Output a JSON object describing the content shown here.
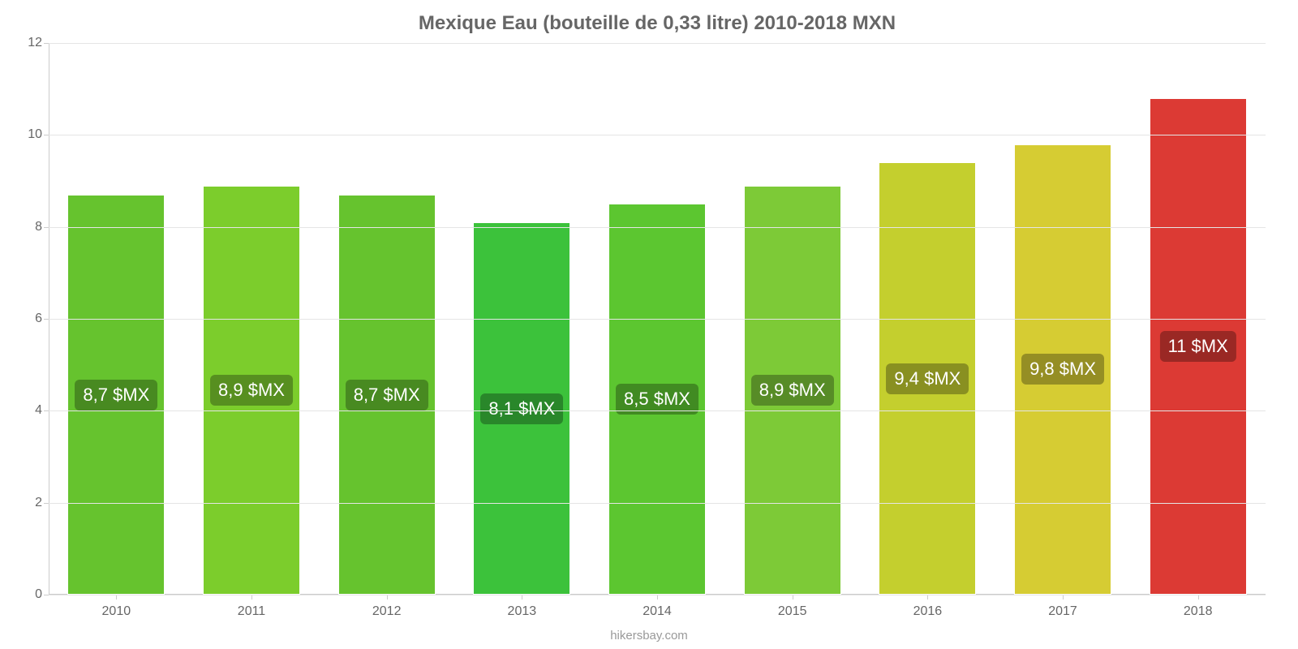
{
  "chart": {
    "type": "bar",
    "title": "Mexique Eau (bouteille de 0,33 litre) 2010-2018 MXN",
    "title_color": "#666666",
    "title_fontsize": 24,
    "attribution": "hikersbay.com",
    "attribution_color": "#999999",
    "background_color": "#ffffff",
    "grid_color": "#e5e5e5",
    "axis_color": "#cccccc",
    "tick_label_color": "#666666",
    "tick_fontsize": 16,
    "ylim": [
      0,
      12
    ],
    "ytick_step": 2,
    "yticks": [
      0,
      2,
      4,
      6,
      8,
      10,
      12
    ],
    "bar_width_pct": 72,
    "categories": [
      "2010",
      "2011",
      "2012",
      "2013",
      "2014",
      "2015",
      "2016",
      "2017",
      "2018"
    ],
    "values": [
      8.7,
      8.9,
      8.7,
      8.1,
      8.5,
      8.9,
      9.4,
      9.8,
      10.8
    ],
    "value_labels": [
      "8,7 $MX",
      "8,9 $MX",
      "8,7 $MX",
      "8,1 $MX",
      "8,5 $MX",
      "8,9 $MX",
      "9,4 $MX",
      "9,8 $MX",
      "11 $MX"
    ],
    "bar_colors": [
      "#66c32e",
      "#7ccd2c",
      "#66c32e",
      "#3cc23b",
      "#5cc630",
      "#7dca37",
      "#c4cf2e",
      "#d6cc33",
      "#dc3a34"
    ],
    "label_bg_colors": [
      "#488a21",
      "#578f20",
      "#488a21",
      "#29872a",
      "#418b22",
      "#578c27",
      "#899021",
      "#958e24",
      "#9a2824"
    ],
    "label_text_color": "#ffffff",
    "label_fontsize": 22
  }
}
